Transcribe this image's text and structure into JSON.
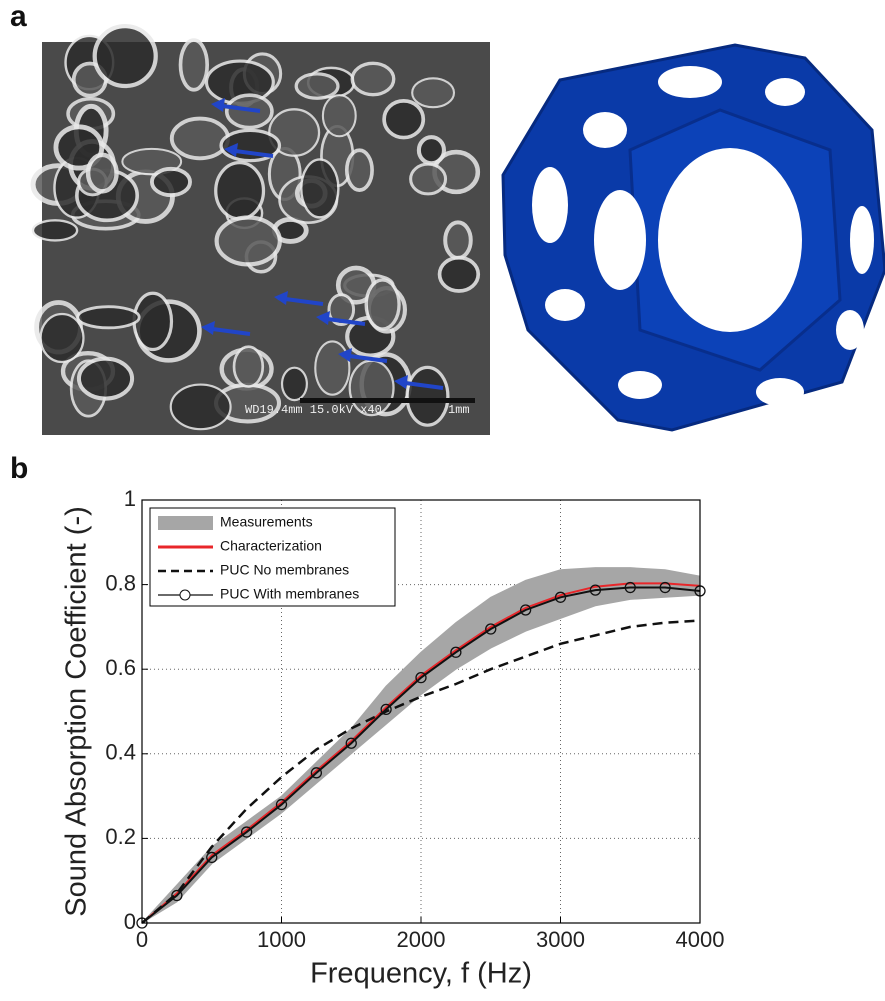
{
  "figure": {
    "panel_a_label": "a",
    "panel_b_label": "b",
    "sem_info": "WD19.4mm 15.0kV x40",
    "sem_scale": "1mm"
  },
  "chart_data": {
    "type": "line",
    "xlabel": "Frequency, f (Hz)",
    "ylabel": "Sound Absorption Coefficient (-)",
    "x": [
      0,
      250,
      500,
      750,
      1000,
      1250,
      1500,
      1750,
      2000,
      2250,
      2500,
      2750,
      3000,
      3250,
      3500,
      3750,
      4000
    ],
    "series": [
      {
        "name": "Measurements",
        "kind": "band",
        "color": "#a6a6a6",
        "upper": [
          0,
          0.09,
          0.18,
          0.24,
          0.3,
          0.38,
          0.46,
          0.56,
          0.64,
          0.71,
          0.77,
          0.81,
          0.835,
          0.84,
          0.84,
          0.835,
          0.82
        ],
        "lower": [
          0,
          0.05,
          0.14,
          0.2,
          0.26,
          0.33,
          0.4,
          0.47,
          0.54,
          0.6,
          0.65,
          0.69,
          0.72,
          0.75,
          0.765,
          0.77,
          0.775
        ]
      },
      {
        "name": "Characterization",
        "kind": "line",
        "color": "#e8262a",
        "style": "solid",
        "values": [
          0,
          0.07,
          0.16,
          0.22,
          0.285,
          0.36,
          0.43,
          0.51,
          0.585,
          0.645,
          0.7,
          0.745,
          0.775,
          0.795,
          0.803,
          0.803,
          0.797
        ]
      },
      {
        "name": "PUC No membranes",
        "kind": "line",
        "color": "#111111",
        "style": "dashed",
        "values": [
          0,
          0.07,
          0.18,
          0.27,
          0.345,
          0.41,
          0.46,
          0.5,
          0.535,
          0.565,
          0.6,
          0.63,
          0.66,
          0.68,
          0.7,
          0.71,
          0.715
        ]
      },
      {
        "name": "PUC With membranes",
        "kind": "line",
        "color": "#111111",
        "style": "solid",
        "marker": "circle",
        "values": [
          0,
          0.065,
          0.155,
          0.215,
          0.28,
          0.355,
          0.425,
          0.505,
          0.58,
          0.64,
          0.695,
          0.74,
          0.77,
          0.787,
          0.793,
          0.793,
          0.785
        ]
      }
    ],
    "xlim": [
      0,
      4000
    ],
    "xticks": [
      0,
      1000,
      2000,
      3000,
      4000
    ],
    "ylim": [
      0,
      1
    ],
    "yticks": [
      0,
      0.2,
      0.4,
      0.6,
      0.8,
      1
    ],
    "grid": true,
    "legend": "upper-left"
  }
}
